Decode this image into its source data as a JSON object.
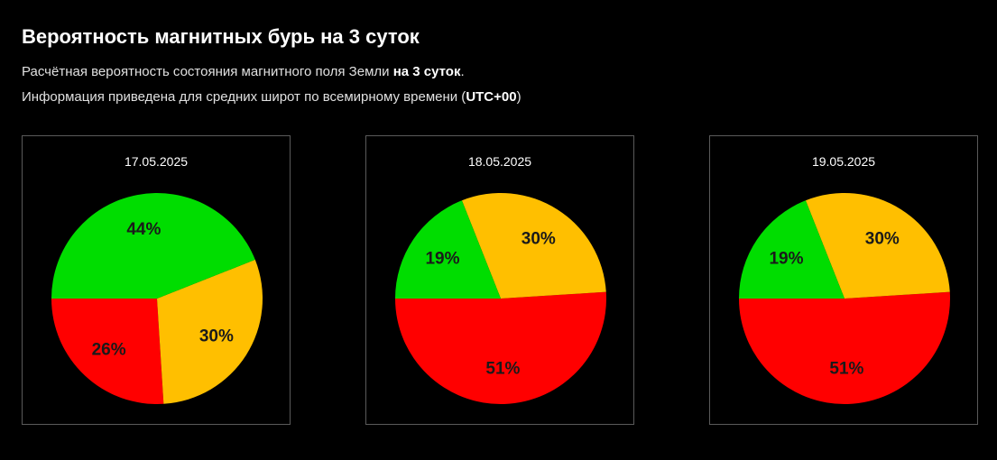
{
  "header": {
    "title": "Вероятность магнитных бурь на 3 суток",
    "line1_prefix": "Расчётная вероятность состояния магнитного поля Земли ",
    "line1_bold": "на 3 суток",
    "line1_suffix": ".",
    "line2_prefix": "Информация приведена для средних широт по всемирному времени (",
    "line2_bold": "UTC+00",
    "line2_suffix": ")"
  },
  "colors": {
    "green": "#00dd00",
    "yellow": "#ffbf00",
    "red": "#ff0000",
    "background": "#000000"
  },
  "chart_data": [
    {
      "type": "pie",
      "title": "17.05.2025",
      "slices": [
        {
          "value": 44,
          "label": "44%",
          "color": "#00dd00"
        },
        {
          "value": 30,
          "label": "30%",
          "color": "#ffbf00"
        },
        {
          "value": 26,
          "label": "26%",
          "color": "#ff0000"
        }
      ]
    },
    {
      "type": "pie",
      "title": "18.05.2025",
      "slices": [
        {
          "value": 19,
          "label": "19%",
          "color": "#00dd00"
        },
        {
          "value": 30,
          "label": "30%",
          "color": "#ffbf00"
        },
        {
          "value": 51,
          "label": "51%",
          "color": "#ff0000"
        }
      ]
    },
    {
      "type": "pie",
      "title": "19.05.2025",
      "slices": [
        {
          "value": 19,
          "label": "19%",
          "color": "#00dd00"
        },
        {
          "value": 30,
          "label": "30%",
          "color": "#ffbf00"
        },
        {
          "value": 51,
          "label": "51%",
          "color": "#ff0000"
        }
      ]
    }
  ]
}
